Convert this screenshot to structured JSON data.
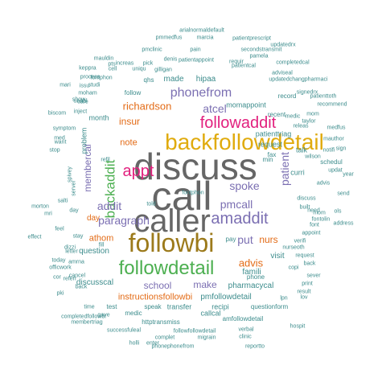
{
  "colors": {
    "c1": "#a6a6a6",
    "c2": "#3c8c8c",
    "c3": "#4caf50",
    "c4": "#9c7a1b",
    "c5": "#7b6fb2",
    "c6": "#e36b16",
    "c7": "#e0ab0e",
    "c8": "#9ac23c",
    "c9": "#595959",
    "c10": "#e2207e",
    "c11": "#666666"
  },
  "words": [
    {
      "t": "discuss",
      "s": 46,
      "c": "c11"
    },
    {
      "t": "call",
      "s": 50,
      "c": "c11"
    },
    {
      "t": "caller",
      "s": 40,
      "c": "c11"
    },
    {
      "t": "backfollowdetail",
      "s": 28,
      "c": "c7"
    },
    {
      "t": "followbi",
      "s": 32,
      "c": "c4"
    },
    {
      "t": "followdetail",
      "s": 24,
      "c": "c3"
    },
    {
      "t": "followaddit",
      "s": 20,
      "c": "c10"
    },
    {
      "t": "amaddit",
      "s": 20,
      "c": "c5"
    },
    {
      "t": "appt",
      "s": 20,
      "c": "c10"
    },
    {
      "t": "phonefrom",
      "s": 16,
      "c": "c5"
    },
    {
      "t": "backaddit",
      "s": 17,
      "c": "c3"
    },
    {
      "t": "richardson",
      "s": 13,
      "c": "c6"
    },
    {
      "t": "atcel",
      "s": 14,
      "c": "c5"
    },
    {
      "t": "insur",
      "s": 12,
      "c": "c6"
    },
    {
      "t": "spoke",
      "s": 14,
      "c": "c5"
    },
    {
      "t": "patient",
      "s": 14,
      "c": "c5"
    },
    {
      "t": "pmcall",
      "s": 14,
      "c": "c5"
    },
    {
      "t": "addit",
      "s": 14,
      "c": "c5"
    },
    {
      "t": "paragraph",
      "s": 14,
      "c": "c5"
    },
    {
      "t": "put",
      "s": 14,
      "c": "c5"
    },
    {
      "t": "nurs",
      "s": 12,
      "c": "c6"
    },
    {
      "t": "advis",
      "s": 13,
      "c": "c6"
    },
    {
      "t": "membercal",
      "s": 12,
      "c": "c5"
    },
    {
      "t": "note",
      "s": 11,
      "c": "c6"
    },
    {
      "t": "athom",
      "s": 11,
      "c": "c6"
    },
    {
      "t": "school",
      "s": 12,
      "c": "c5"
    },
    {
      "t": "make",
      "s": 12,
      "c": "c5"
    },
    {
      "t": "discusscal",
      "s": 10,
      "c": "c2"
    },
    {
      "t": "instructionsfollowbi",
      "s": 11,
      "c": "c6"
    },
    {
      "t": "pmfollowdetail",
      "s": 10,
      "c": "c2"
    },
    {
      "t": "pharmacycal",
      "s": 10,
      "c": "c2"
    },
    {
      "t": "famili",
      "s": 10,
      "c": "c2"
    },
    {
      "t": "visit",
      "s": 10,
      "c": "c2"
    },
    {
      "t": "question",
      "s": 10,
      "c": "c2"
    },
    {
      "t": "day",
      "s": 10,
      "c": "c6"
    },
    {
      "t": "transfer",
      "s": 9,
      "c": "c2"
    },
    {
      "t": "callcal",
      "s": 9,
      "c": "c2"
    },
    {
      "t": "recipi",
      "s": 9,
      "c": "c2"
    },
    {
      "t": "questionform",
      "s": 8,
      "c": "c2"
    },
    {
      "t": "made",
      "s": 10,
      "c": "c2"
    },
    {
      "t": "hipaa",
      "s": 10,
      "c": "c2"
    },
    {
      "t": "momappoint",
      "s": 9,
      "c": "c2"
    },
    {
      "t": "month",
      "s": 9,
      "c": "c2"
    },
    {
      "t": "problem",
      "s": 9,
      "c": "c2"
    },
    {
      "t": "request",
      "s": 9,
      "c": "c2"
    },
    {
      "t": "patienttriag",
      "s": 9,
      "c": "c2"
    },
    {
      "t": "curri",
      "s": 9,
      "c": "c2"
    },
    {
      "t": "talk",
      "s": 9,
      "c": "c2"
    },
    {
      "t": "fax",
      "s": 8,
      "c": "c2"
    },
    {
      "t": "min",
      "s": 8,
      "c": "c2"
    },
    {
      "t": "record",
      "s": 8,
      "c": "c2"
    },
    {
      "t": "recent",
      "s": 8,
      "c": "c2"
    },
    {
      "t": "phone",
      "s": 8,
      "c": "c2"
    },
    {
      "t": "speak",
      "s": 8,
      "c": "c2"
    },
    {
      "t": "test",
      "s": 8,
      "c": "c2"
    },
    {
      "t": "medic",
      "s": 8,
      "c": "c2"
    },
    {
      "t": "httptransmiss",
      "s": 8,
      "c": "c2"
    },
    {
      "t": "amfollowdetail",
      "s": 8,
      "c": "c2"
    },
    {
      "t": "followfollowdetail",
      "s": 7,
      "c": "c2"
    },
    {
      "t": "migrain",
      "s": 7,
      "c": "c2"
    },
    {
      "t": "complet",
      "s": 7,
      "c": "c2"
    },
    {
      "t": "phonephonefrom",
      "s": 7,
      "c": "c2"
    },
    {
      "t": "reportto",
      "s": 7,
      "c": "c2"
    },
    {
      "t": "holli",
      "s": 7,
      "c": "c2"
    },
    {
      "t": "enter",
      "s": 7,
      "c": "c2"
    },
    {
      "t": "successfuleal",
      "s": 7,
      "c": "c2"
    },
    {
      "t": "membertriag",
      "s": 7,
      "c": "c2"
    },
    {
      "t": "verbal",
      "s": 7,
      "c": "c2"
    },
    {
      "t": "clinic",
      "s": 7,
      "c": "c2"
    },
    {
      "t": "hospit",
      "s": 7,
      "c": "c2"
    },
    {
      "t": "gave",
      "s": 7,
      "c": "c2"
    },
    {
      "t": "time",
      "s": 7,
      "c": "c2"
    },
    {
      "t": "completedfollowbi",
      "s": 7,
      "c": "c2"
    },
    {
      "t": "follow",
      "s": 8,
      "c": "c2"
    },
    {
      "t": "qhs",
      "s": 8,
      "c": "c2"
    },
    {
      "t": "fontphon",
      "s": 7,
      "c": "c2"
    },
    {
      "t": "moham",
      "s": 7,
      "c": "c2"
    },
    {
      "t": "care",
      "s": 7,
      "c": "c2"
    },
    {
      "t": "inject",
      "s": 7,
      "c": "c2"
    },
    {
      "t": "cell",
      "s": 7,
      "c": "c2"
    },
    {
      "t": "uniqu",
      "s": 7,
      "c": "c2"
    },
    {
      "t": "gilligan",
      "s": 7,
      "c": "c2"
    },
    {
      "t": "patientcal",
      "s": 7,
      "c": "c2"
    },
    {
      "t": "updatedchangpharmaci",
      "s": 7,
      "c": "c2"
    },
    {
      "t": "adviseal",
      "s": 7,
      "c": "c2"
    },
    {
      "t": "patientappoint",
      "s": 7,
      "c": "c2"
    },
    {
      "t": "denis",
      "s": 7,
      "c": "c2"
    },
    {
      "t": "pmclinic",
      "s": 7,
      "c": "c2"
    },
    {
      "t": "pain",
      "s": 7,
      "c": "c2"
    },
    {
      "t": "secondstransmit",
      "s": 7,
      "c": "c2"
    },
    {
      "t": "pamela",
      "s": 7,
      "c": "c2"
    },
    {
      "t": "requir",
      "s": 7,
      "c": "c2"
    },
    {
      "t": "completedcal",
      "s": 7,
      "c": "c2"
    },
    {
      "t": "mauldin",
      "s": 7,
      "c": "c2"
    },
    {
      "t": "pts",
      "s": 7,
      "c": "c2"
    },
    {
      "t": "increas",
      "s": 7,
      "c": "c2"
    },
    {
      "t": "pick",
      "s": 7,
      "c": "c2"
    },
    {
      "t": "keppra",
      "s": 7,
      "c": "c2"
    },
    {
      "t": "process",
      "s": 7,
      "c": "c2"
    },
    {
      "t": "studi",
      "s": 7,
      "c": "c2"
    },
    {
      "t": "mari",
      "s": 7,
      "c": "c2"
    },
    {
      "t": "issu",
      "s": 7,
      "c": "c2"
    },
    {
      "t": "arialnormaldefault",
      "s": 7,
      "c": "c2"
    },
    {
      "t": "pmmedfus",
      "s": 7,
      "c": "c2"
    },
    {
      "t": "marcia",
      "s": 7,
      "c": "c2"
    },
    {
      "t": "patientprescript",
      "s": 7,
      "c": "c2"
    },
    {
      "t": "updatedrx",
      "s": 7,
      "c": "c2"
    },
    {
      "t": "signedrx",
      "s": 7,
      "c": "c2"
    },
    {
      "t": "patienttoth",
      "s": 7,
      "c": "c2"
    },
    {
      "t": "recommend",
      "s": 7,
      "c": "c2"
    },
    {
      "t": "mom",
      "s": 7,
      "c": "c2"
    },
    {
      "t": "medic",
      "s": 7,
      "c": "c2"
    },
    {
      "t": "releas",
      "s": 7,
      "c": "c2"
    },
    {
      "t": "taylor",
      "s": 7,
      "c": "c2"
    },
    {
      "t": "medfus",
      "s": 7,
      "c": "c2"
    },
    {
      "t": "mauthor",
      "s": 7,
      "c": "c2"
    },
    {
      "t": "sign",
      "s": 7,
      "c": "c2"
    },
    {
      "t": "wilson",
      "s": 7,
      "c": "c2"
    },
    {
      "t": "notifi",
      "s": 7,
      "c": "c2"
    },
    {
      "t": "year",
      "s": 7,
      "c": "c2"
    },
    {
      "t": "updat",
      "s": 7,
      "c": "c2"
    },
    {
      "t": "send",
      "s": 7,
      "c": "c2"
    },
    {
      "t": "advis",
      "s": 7,
      "c": "c2"
    },
    {
      "t": "schedul",
      "s": 8,
      "c": "c2"
    },
    {
      "t": "discuss",
      "s": 7,
      "c": "c2"
    },
    {
      "t": "built",
      "s": 7,
      "c": "c2"
    },
    {
      "t": "mom",
      "s": 7,
      "c": "c2"
    },
    {
      "t": "fontolin",
      "s": 7,
      "c": "c2"
    },
    {
      "t": "need",
      "s": 7,
      "c": "c2"
    },
    {
      "t": "ols",
      "s": 7,
      "c": "c2"
    },
    {
      "t": "address",
      "s": 7,
      "c": "c2"
    },
    {
      "t": "font",
      "s": 7,
      "c": "c2"
    },
    {
      "t": "appoint",
      "s": 7,
      "c": "c2"
    },
    {
      "t": "verifi",
      "s": 7,
      "c": "c2"
    },
    {
      "t": "nurseoth",
      "s": 7,
      "c": "c2"
    },
    {
      "t": "request",
      "s": 7,
      "c": "c2"
    },
    {
      "t": "back",
      "s": 7,
      "c": "c2"
    },
    {
      "t": "copi",
      "s": 7,
      "c": "c2"
    },
    {
      "t": "sever",
      "s": 7,
      "c": "c2"
    },
    {
      "t": "print",
      "s": 7,
      "c": "c2"
    },
    {
      "t": "result",
      "s": 7,
      "c": "c2"
    },
    {
      "t": "lov",
      "s": 7,
      "c": "c2"
    },
    {
      "t": "lpn",
      "s": 7,
      "c": "c2"
    },
    {
      "t": "pay",
      "s": 8,
      "c": "c2"
    },
    {
      "t": "want",
      "s": 7,
      "c": "c2"
    },
    {
      "t": "stop",
      "s": 7,
      "c": "c2"
    },
    {
      "t": "symptom",
      "s": 7,
      "c": "c2"
    },
    {
      "t": "biscom",
      "s": 7,
      "c": "c2"
    },
    {
      "t": "med",
      "s": 7,
      "c": "c2"
    },
    {
      "t": "spivey",
      "s": 7,
      "c": "c2"
    },
    {
      "t": "server",
      "s": 7,
      "c": "c2"
    },
    {
      "t": "refil",
      "s": 7,
      "c": "c2"
    },
    {
      "t": "told",
      "s": 7,
      "c": "c2"
    },
    {
      "t": "fill",
      "s": 7,
      "c": "c2"
    },
    {
      "t": "salti",
      "s": 7,
      "c": "c2"
    },
    {
      "t": "morton",
      "s": 7,
      "c": "c2"
    },
    {
      "t": "effect",
      "s": 7,
      "c": "c2"
    },
    {
      "t": "mri",
      "s": 7,
      "c": "c2"
    },
    {
      "t": "feel",
      "s": 7,
      "c": "c2"
    },
    {
      "t": "stay",
      "s": 7,
      "c": "c2"
    },
    {
      "t": "letter",
      "s": 7,
      "c": "c2"
    },
    {
      "t": "dizzi",
      "s": 7,
      "c": "c2"
    },
    {
      "t": "today",
      "s": 7,
      "c": "c2"
    },
    {
      "t": "officwork",
      "s": 7,
      "c": "c2"
    },
    {
      "t": "amrna",
      "s": 7,
      "c": "c2"
    },
    {
      "t": "cancel",
      "s": 7,
      "c": "c2"
    },
    {
      "t": "referr",
      "s": 7,
      "c": "c2"
    },
    {
      "t": "cor",
      "s": 7,
      "c": "c2"
    },
    {
      "t": "back",
      "s": 7,
      "c": "c2"
    },
    {
      "t": "pki",
      "s": 7,
      "c": "c2"
    },
    {
      "t": "day",
      "s": 7,
      "c": "c2"
    },
    {
      "t": "show",
      "s": 7,
      "c": "c2"
    },
    {
      "t": "unabl",
      "s": 7,
      "c": "c2"
    },
    {
      "t": "fontphon",
      "s": 7,
      "c": "c2"
    }
  ]
}
